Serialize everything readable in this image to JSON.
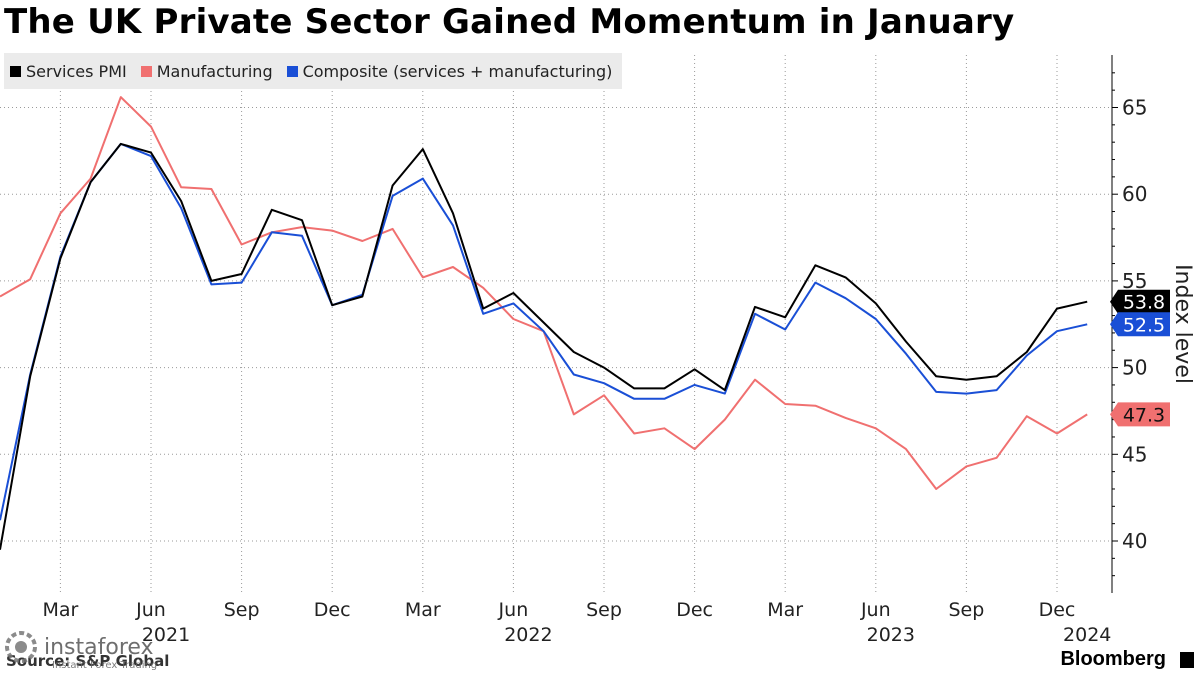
{
  "title": "The UK Private Sector Gained Momentum in January",
  "legend": [
    {
      "label": "Services PMI",
      "color": "#000000"
    },
    {
      "label": "Manufacturing",
      "color": "#f07070"
    },
    {
      "label": "Composite (services + manufacturing)",
      "color": "#1a4fd6"
    }
  ],
  "footer": {
    "source": "Source: S&P Global",
    "brand": "Bloomberg",
    "watermark": "instaforex",
    "watermark_sub": "Instant Forex Trading"
  },
  "chart_data": {
    "type": "line",
    "title": "The UK Private Sector Gained Momentum in January",
    "ylabel": "Index level",
    "xlabel": "",
    "ylim": [
      37,
      68
    ],
    "yticks": [
      40,
      45,
      50,
      55,
      60,
      65
    ],
    "x": [
      "2021-01",
      "2021-02",
      "2021-03",
      "2021-04",
      "2021-05",
      "2021-06",
      "2021-07",
      "2021-08",
      "2021-09",
      "2021-10",
      "2021-11",
      "2021-12",
      "2022-01",
      "2022-02",
      "2022-03",
      "2022-04",
      "2022-05",
      "2022-06",
      "2022-07",
      "2022-08",
      "2022-09",
      "2022-10",
      "2022-11",
      "2022-12",
      "2023-01",
      "2023-02",
      "2023-03",
      "2023-04",
      "2023-05",
      "2023-06",
      "2023-07",
      "2023-08",
      "2023-09",
      "2023-10",
      "2023-11",
      "2023-12",
      "2024-01"
    ],
    "xticks": [
      {
        "label": "Mar",
        "index": 2
      },
      {
        "label": "Jun",
        "index": 5,
        "year": "2021"
      },
      {
        "label": "Sep",
        "index": 8
      },
      {
        "label": "Dec",
        "index": 11
      },
      {
        "label": "Mar",
        "index": 14
      },
      {
        "label": "Jun",
        "index": 17,
        "year": "2022"
      },
      {
        "label": "Sep",
        "index": 20
      },
      {
        "label": "Dec",
        "index": 23
      },
      {
        "label": "Mar",
        "index": 26
      },
      {
        "label": "Jun",
        "index": 29,
        "year": "2023"
      },
      {
        "label": "Sep",
        "index": 32
      },
      {
        "label": "Dec",
        "index": 35
      },
      {
        "label": "",
        "index": 36,
        "year": "2024"
      }
    ],
    "series": [
      {
        "name": "Services PMI",
        "color": "#000000",
        "values": [
          39.5,
          49.5,
          56.3,
          60.7,
          62.9,
          62.4,
          59.6,
          55.0,
          55.4,
          59.1,
          58.5,
          53.6,
          54.1,
          60.5,
          62.6,
          58.9,
          53.4,
          54.3,
          52.6,
          50.9,
          50.0,
          48.8,
          48.8,
          49.9,
          48.7,
          53.5,
          52.9,
          55.9,
          55.2,
          53.7,
          51.5,
          49.5,
          49.3,
          49.5,
          50.9,
          53.4,
          53.8
        ],
        "end_label": "53.8"
      },
      {
        "name": "Manufacturing",
        "color": "#f07070",
        "values": [
          54.1,
          55.1,
          58.9,
          60.9,
          65.6,
          63.9,
          60.4,
          60.3,
          57.1,
          57.8,
          58.1,
          57.9,
          57.3,
          58.0,
          55.2,
          55.8,
          54.6,
          52.8,
          52.1,
          47.3,
          48.4,
          46.2,
          46.5,
          45.3,
          47.0,
          49.3,
          47.9,
          47.8,
          47.1,
          46.5,
          45.3,
          43.0,
          44.3,
          44.8,
          47.2,
          46.2,
          47.3
        ],
        "end_label": "47.3"
      },
      {
        "name": "Composite (services + manufacturing)",
        "color": "#1a4fd6",
        "values": [
          41.2,
          49.6,
          56.4,
          60.7,
          62.9,
          62.2,
          59.2,
          54.8,
          54.9,
          57.8,
          57.6,
          53.6,
          54.2,
          59.9,
          60.9,
          58.2,
          53.1,
          53.7,
          52.1,
          49.6,
          49.1,
          48.2,
          48.2,
          49.0,
          48.5,
          53.1,
          52.2,
          54.9,
          54.0,
          52.8,
          50.8,
          48.6,
          48.5,
          48.7,
          50.7,
          52.1,
          52.5
        ],
        "end_label": "52.5"
      }
    ]
  }
}
